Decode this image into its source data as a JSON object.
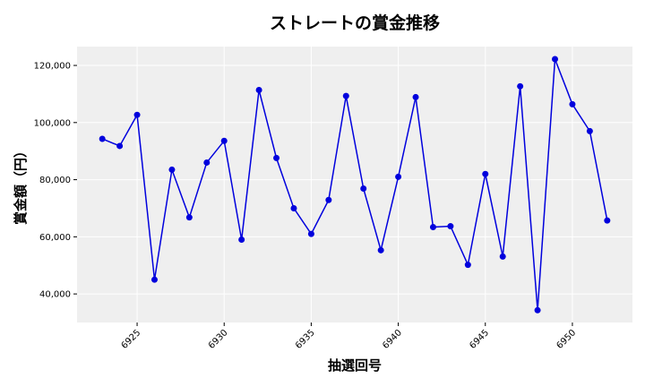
{
  "chart_data": {
    "type": "line",
    "title": "ストレートの賞金推移",
    "xlabel": "抽選回号",
    "ylabel": "賞金額（円）",
    "x": [
      6923,
      6924,
      6925,
      6926,
      6927,
      6928,
      6929,
      6930,
      6931,
      6932,
      6933,
      6934,
      6935,
      6936,
      6937,
      6938,
      6939,
      6940,
      6941,
      6942,
      6943,
      6944,
      6945,
      6946,
      6947,
      6948,
      6949,
      6950,
      6951,
      6952
    ],
    "series": [
      {
        "values": [
          94300,
          91800,
          102700,
          45000,
          83500,
          66800,
          86000,
          93600,
          59000,
          111400,
          87600,
          70000,
          61000,
          72900,
          109300,
          76900,
          55300,
          81000,
          108900,
          63400,
          63700,
          50200,
          82000,
          53100,
          112700,
          34300,
          122200,
          106400,
          97000,
          65700
        ]
      }
    ],
    "xticks": [
      "6925",
      "6930",
      "6935",
      "6940",
      "6945",
      "6950"
    ],
    "yticks": [
      "40,000",
      "60,000",
      "80,000",
      "100,000",
      "120,000"
    ],
    "xlim": [
      6921.55,
      6953.45
    ],
    "ylim": [
      30000,
      126600
    ],
    "grid": true,
    "colors": {
      "line": "#0000dd",
      "plot_bg": "#efefef",
      "grid": "#ffffff"
    }
  }
}
